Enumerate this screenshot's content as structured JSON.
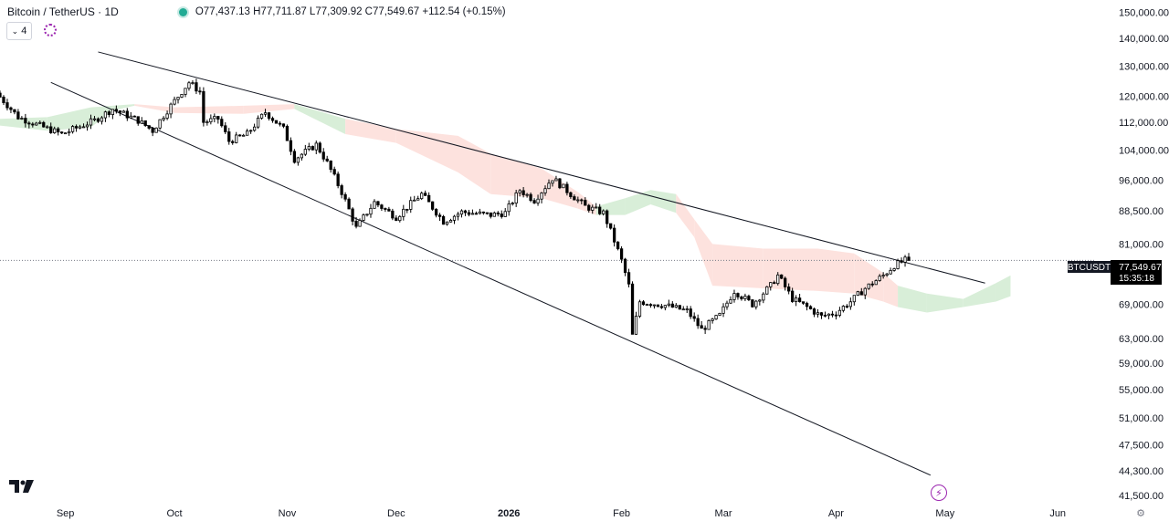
{
  "header": {
    "symbol": "Bitcoin / TetherUS · 1D",
    "ohlc": "O77,437.13 H77,711.87 L77,309.92 C77,549.67 +112.54 (+0.15%)",
    "indicator_count": "4"
  },
  "price_tag": {
    "ticker": "BTCUSDT",
    "price": "77,549.67",
    "countdown": "15:35:18"
  },
  "colors": {
    "up": "#ffffff",
    "down": "#000000",
    "wick": "#000000",
    "cloud_bull": "#d8eed8",
    "cloud_bear": "#fde2de",
    "trendline": "#131722",
    "accent": "#9c27b0",
    "live_dot": "#22ab94"
  },
  "chart_data": {
    "type": "candlestick",
    "scale": "log",
    "interval": "1D",
    "y_ticks": [
      "150,000.00",
      "140,000.00",
      "130,000.00",
      "120,000.00",
      "112,000.00",
      "104,000.00",
      "96,000.00",
      "88,500.00",
      "81,000.00",
      "69,000.00",
      "63,000.00",
      "59,000.00",
      "55,000.00",
      "51,000.00",
      "47,500.00",
      "44,300.00",
      "41,500.00"
    ],
    "y_tick_values": [
      150000,
      140000,
      130000,
      120000,
      112000,
      104000,
      96000,
      88500,
      81000,
      69000,
      63000,
      59000,
      55000,
      51000,
      47500,
      44300,
      41500
    ],
    "ylim": [
      41000,
      155000
    ],
    "x_labels": [
      {
        "label": "Sep",
        "date": "2025-09-01"
      },
      {
        "label": "Oct",
        "date": "2025-10-01"
      },
      {
        "label": "Nov",
        "date": "2025-11-01"
      },
      {
        "label": "Dec",
        "date": "2025-12-01"
      },
      {
        "label": "2026",
        "date": "2026-01-01"
      },
      {
        "label": "Feb",
        "date": "2026-02-01"
      },
      {
        "label": "Mar",
        "date": "2026-03-01"
      },
      {
        "label": "Apr",
        "date": "2026-04-01"
      },
      {
        "label": "May",
        "date": "2026-05-01"
      },
      {
        "label": "Jun",
        "date": "2026-06-01"
      }
    ],
    "xlim": [
      "2025-08-14",
      "2026-06-11"
    ],
    "last_price": 77549.67,
    "price_path": [
      [
        "2025-08-14",
        121000
      ],
      [
        "2025-08-20",
        113500
      ],
      [
        "2025-08-27",
        110500
      ],
      [
        "2025-09-01",
        108500
      ],
      [
        "2025-09-10",
        112500
      ],
      [
        "2025-09-15",
        116000
      ],
      [
        "2025-09-22",
        112500
      ],
      [
        "2025-09-26",
        109500
      ],
      [
        "2025-10-01",
        117000
      ],
      [
        "2025-10-06",
        124500
      ],
      [
        "2025-10-09",
        121500
      ],
      [
        "2025-10-10",
        112000
      ],
      [
        "2025-10-14",
        113000
      ],
      [
        "2025-10-17",
        106500
      ],
      [
        "2025-10-22",
        108500
      ],
      [
        "2025-10-27",
        115000
      ],
      [
        "2025-11-01",
        110000
      ],
      [
        "2025-11-04",
        101500
      ],
      [
        "2025-11-10",
        105500
      ],
      [
        "2025-11-13",
        100500
      ],
      [
        "2025-11-17",
        93000
      ],
      [
        "2025-11-21",
        84500
      ],
      [
        "2025-11-26",
        90500
      ],
      [
        "2025-12-02",
        87000
      ],
      [
        "2025-12-09",
        92500
      ],
      [
        "2025-12-15",
        86000
      ],
      [
        "2025-12-20",
        88200
      ],
      [
        "2025-12-28",
        87500
      ],
      [
        "2026-01-01",
        88000
      ],
      [
        "2026-01-05",
        93500
      ],
      [
        "2026-01-09",
        91000
      ],
      [
        "2026-01-14",
        96500
      ],
      [
        "2026-01-19",
        92500
      ],
      [
        "2026-01-23",
        89500
      ],
      [
        "2026-01-28",
        88000
      ],
      [
        "2026-02-02",
        77500
      ],
      [
        "2026-02-04",
        72500
      ],
      [
        "2026-02-05",
        63500
      ],
      [
        "2026-02-07",
        69500
      ],
      [
        "2026-02-14",
        68800
      ],
      [
        "2026-02-20",
        67800
      ],
      [
        "2026-02-24",
        64500
      ],
      [
        "2026-03-01",
        67000
      ],
      [
        "2026-03-05",
        71500
      ],
      [
        "2026-03-10",
        69000
      ],
      [
        "2026-03-15",
        72500
      ],
      [
        "2026-03-17",
        74500
      ],
      [
        "2026-03-21",
        70000
      ],
      [
        "2026-03-25",
        68500
      ],
      [
        "2026-03-29",
        66800
      ],
      [
        "2026-04-02",
        67500
      ],
      [
        "2026-04-06",
        69500
      ],
      [
        "2026-04-10",
        72000
      ],
      [
        "2026-04-15",
        74500
      ],
      [
        "2026-04-18",
        76500
      ],
      [
        "2026-04-21",
        77549.67
      ]
    ],
    "ichimoku_cloud": [
      [
        "2025-08-14",
        113000,
        111000,
        "bull"
      ],
      [
        "2025-08-27",
        113500,
        109500,
        "bull"
      ],
      [
        "2025-09-08",
        116500,
        110500,
        "bull"
      ],
      [
        "2025-09-14",
        117000,
        115500,
        "bull"
      ],
      [
        "2025-09-20",
        117500,
        117000,
        "bear"
      ],
      [
        "2025-10-01",
        116500,
        114800,
        "bear"
      ],
      [
        "2025-10-20",
        117000,
        114500,
        "bear"
      ],
      [
        "2025-11-03",
        117500,
        116000,
        "bull"
      ],
      [
        "2025-11-17",
        113000,
        108500,
        "bear"
      ],
      [
        "2025-12-01",
        110000,
        106000,
        "bear"
      ],
      [
        "2025-12-18",
        108000,
        98000,
        "bear"
      ],
      [
        "2025-12-27",
        103000,
        92500,
        "bear"
      ],
      [
        "2026-01-10",
        99000,
        91500,
        "bear"
      ],
      [
        "2026-01-20",
        93000,
        89000,
        "bear"
      ],
      [
        "2026-01-25",
        89500,
        87500,
        "bull"
      ],
      [
        "2026-02-02",
        91500,
        87500,
        "bull"
      ],
      [
        "2026-02-09",
        93500,
        90000,
        "bull"
      ],
      [
        "2026-02-16",
        92500,
        88000,
        "bear"
      ],
      [
        "2026-02-21",
        86500,
        82500,
        "bear"
      ],
      [
        "2026-02-26",
        81000,
        72500,
        "bear"
      ],
      [
        "2026-03-12",
        80000,
        72000,
        "bear"
      ],
      [
        "2026-03-27",
        80000,
        71500,
        "bear"
      ],
      [
        "2026-04-06",
        79000,
        71000,
        "bear"
      ],
      [
        "2026-04-14",
        75000,
        69500,
        "bear"
      ],
      [
        "2026-04-18",
        72500,
        68500,
        "bull"
      ],
      [
        "2026-04-26",
        71000,
        67500,
        "bull"
      ],
      [
        "2026-05-06",
        70000,
        68500,
        "bull"
      ],
      [
        "2026-05-15",
        73000,
        69500,
        "bull"
      ],
      [
        "2026-05-19",
        74500,
        70500,
        "bull"
      ]
    ],
    "trendlines": [
      {
        "from": [
          "2025-09-10",
          135000
        ],
        "to": [
          "2026-05-12",
          73000
        ]
      },
      {
        "from": [
          "2025-08-28",
          124500
        ],
        "to": [
          "2026-04-27",
          43800
        ]
      }
    ]
  }
}
